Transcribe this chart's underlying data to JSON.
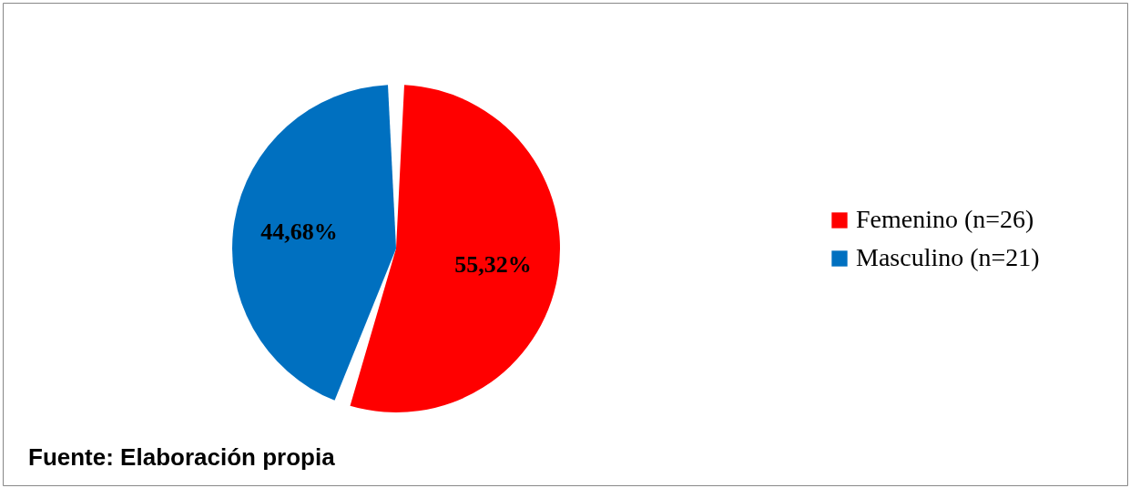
{
  "chart_data": {
    "type": "pie",
    "categories": [
      "Femenino (n=26)",
      "Masculino (n=21)"
    ],
    "values": [
      55.32,
      44.68
    ],
    "colors": [
      "#ff0000",
      "#0070c0"
    ],
    "value_labels": [
      "55,32%",
      "44,68%"
    ],
    "legend": "right",
    "annotations": [
      "Fuente: Elaboración propia"
    ]
  }
}
